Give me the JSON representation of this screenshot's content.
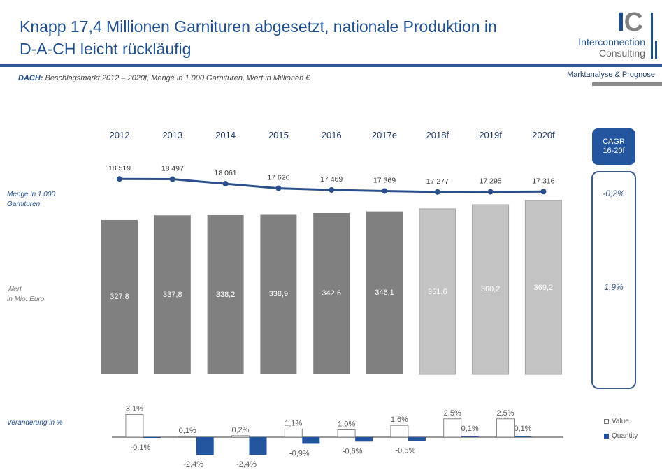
{
  "header": {
    "title_line1": "Knapp 17,4 Millionen Garnituren abgesetzt, nationale Produktion in",
    "title_line2": "D-A-CH leicht rückläufig",
    "subtitle_bold": "DACH:",
    "subtitle_rest": " Beschlagsmarkt 2012 – 2020f, Menge in 1.000 Garnituren, Wert in Millionen €",
    "tagline": "Marktanalyse & Prognose"
  },
  "logo": {
    "letter_i": "I",
    "letter_c": "C",
    "line1": "Interconnection",
    "line2": "Consulting"
  },
  "labels": {
    "menge": "Menge in 1.000",
    "menge2": "Garnituren",
    "wert": "Wert",
    "wert2": "in Mio. Euro",
    "veraenderung": "Veränderung in %"
  },
  "cagr": {
    "title1": "CAGR",
    "title2": "16-20f",
    "quantity": "-0,2%",
    "value": "1,9%"
  },
  "legend": {
    "value": "Value",
    "quantity": "Quantity"
  },
  "colors": {
    "brand_blue": "#1f4e8c",
    "line_blue": "#2b4f8a",
    "bar_actual": "#808080",
    "bar_forecast": "#c3c3c3",
    "quantity_bar": "#2456a0"
  },
  "chart_data": [
    {
      "type": "line",
      "title": "Menge in 1.000 Garnituren",
      "categories": [
        "2012",
        "2013",
        "2014",
        "2015",
        "2016",
        "2017e",
        "2018f",
        "2019f",
        "2020f"
      ],
      "values": [
        18519,
        18497,
        18061,
        17626,
        17469,
        17369,
        17277,
        17295,
        17316
      ],
      "labels": [
        "18 519",
        "18 497",
        "18 061",
        "17 626",
        "17 469",
        "17 369",
        "17 277",
        "17 295",
        "17 316"
      ]
    },
    {
      "type": "bar",
      "title": "Wert in Mio. Euro",
      "categories": [
        "2012",
        "2013",
        "2014",
        "2015",
        "2016",
        "2017e",
        "2018f",
        "2019f",
        "2020f"
      ],
      "values": [
        327.8,
        337.8,
        338.2,
        338.9,
        342.6,
        346.1,
        351.6,
        360.2,
        369.2
      ],
      "labels": [
        "327,8",
        "337,8",
        "338,2",
        "338,9",
        "342,6",
        "346,1",
        "351,6",
        "360,2",
        "369,2"
      ],
      "forecast_from_index": 6
    },
    {
      "type": "bar",
      "title": "Veränderung in %",
      "categories": [
        "2012",
        "2013",
        "2014",
        "2015",
        "2016",
        "2017e",
        "2018f",
        "2019f",
        "2020f"
      ],
      "series": [
        {
          "name": "Value",
          "values": [
            3.1,
            0.1,
            0.2,
            1.1,
            1.0,
            1.6,
            2.5,
            2.5
          ],
          "labels": [
            "3,1%",
            "0,1%",
            "0,2%",
            "1,1%",
            "1,0%",
            "1,6%",
            "2,5%",
            "2,5%"
          ]
        },
        {
          "name": "Quantity",
          "values": [
            -0.1,
            -2.4,
            -2.4,
            -0.9,
            -0.6,
            -0.5,
            0.1,
            0.1
          ],
          "labels": [
            "-0,1%",
            "-2,4%",
            "-2,4%",
            "-0,9%",
            "-0,6%",
            "-0,5%",
            "0,1%",
            "0,1%"
          ]
        }
      ],
      "legend": "right"
    }
  ]
}
